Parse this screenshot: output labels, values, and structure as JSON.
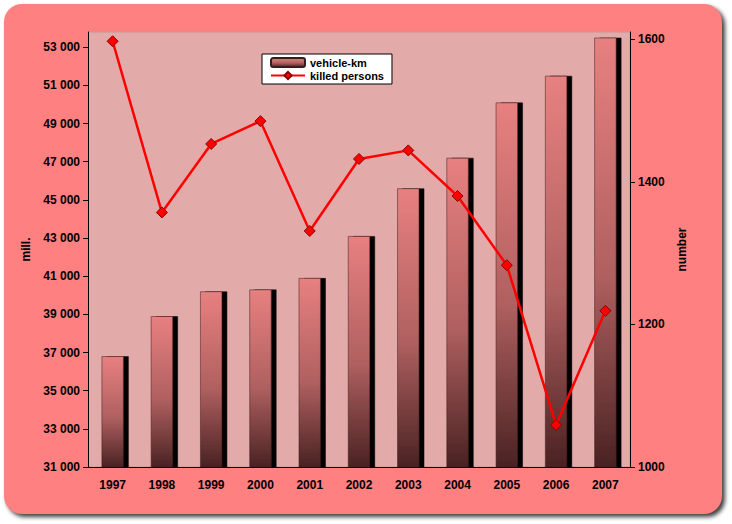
{
  "chart_data": {
    "type": "bar",
    "categories": [
      "1997",
      "1998",
      "1999",
      "2000",
      "2001",
      "2002",
      "2003",
      "2004",
      "2005",
      "2006",
      "2007"
    ],
    "series": [
      {
        "name": "vehicle-km",
        "type": "bar",
        "color": "#e88080",
        "values": [
          36800,
          38900,
          40200,
          40300,
          40900,
          43100,
          45600,
          47200,
          50100,
          51500,
          53500
        ]
      },
      {
        "name": "killed persons",
        "type": "line",
        "axis": "y2",
        "color": "#ff0000",
        "marker": "diamond",
        "line_style": "solid",
        "values": [
          1597,
          1357,
          1453,
          1485,
          1331,
          1432,
          1444,
          1380,
          1283,
          1059,
          1219
        ]
      }
    ],
    "y_label": "mill.",
    "y2_label": "number",
    "ylim": [
      31000,
      53800
    ],
    "yticks": [
      {
        "value": 31000,
        "label": "31 000"
      },
      {
        "value": 33000,
        "label": "33 000"
      },
      {
        "value": 35000,
        "label": "35 000"
      },
      {
        "value": 37000,
        "label": "37 000"
      },
      {
        "value": 39000,
        "label": "39 000"
      },
      {
        "value": 41000,
        "label": "41 000"
      },
      {
        "value": 43000,
        "label": "43 000"
      },
      {
        "value": 45000,
        "label": "45 000"
      },
      {
        "value": 47000,
        "label": "47 000"
      },
      {
        "value": 49000,
        "label": "49 000"
      },
      {
        "value": 51000,
        "label": "51 000"
      },
      {
        "value": 53000,
        "label": "53 000"
      }
    ],
    "y2lim": [
      1000,
      1610
    ],
    "y2ticks": [
      1000,
      1200,
      1400,
      1600
    ],
    "legend": "top",
    "grid": false
  }
}
